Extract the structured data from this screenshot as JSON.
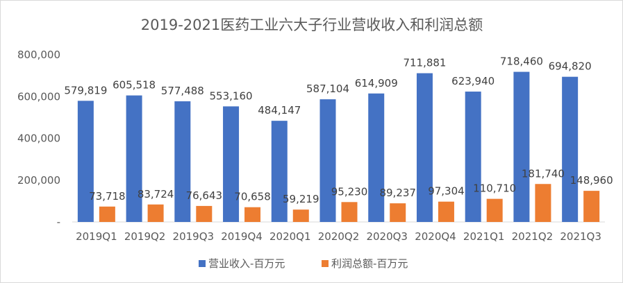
{
  "chart_data": {
    "type": "bar",
    "title": "2019-2021医药工业六大子行业营收收入和利润总额",
    "xlabel": "",
    "ylabel": "",
    "categories": [
      "2019Q1",
      "2019Q2",
      "2019Q3",
      "2019Q4",
      "2020Q1",
      "2020Q2",
      "2020Q3",
      "2020Q4",
      "2021Q1",
      "2021Q2",
      "2021Q3"
    ],
    "series": [
      {
        "name": "营业收入-百万元",
        "color": "#4472C4",
        "values": [
          579819,
          605518,
          577488,
          553160,
          484147,
          587104,
          614909,
          711881,
          623940,
          718460,
          694820
        ],
        "labels": [
          "579,819",
          "605,518",
          "577,488",
          "553,160",
          "484,147",
          "587,104",
          "614,909",
          "711,881",
          "623,940",
          "718,460",
          "694,820"
        ]
      },
      {
        "name": "利润总额-百万元",
        "color": "#ED7D31",
        "values": [
          73718,
          83724,
          76643,
          70658,
          59219,
          95230,
          89237,
          97304,
          110710,
          181740,
          148960
        ],
        "labels": [
          "73,718",
          "83,724",
          "76,643",
          "70,658",
          "59,219",
          "95,230",
          "89,237",
          "97,304",
          "110,710",
          "181,740",
          "148,960"
        ]
      }
    ],
    "ylim": [
      0,
      800000
    ],
    "yticks": [
      0,
      200000,
      400000,
      600000,
      800000
    ],
    "ytick_labels": [
      "-",
      "200,000",
      "400,000",
      "600,000",
      "800,000"
    ],
    "grid": false,
    "legend": "bottom"
  }
}
